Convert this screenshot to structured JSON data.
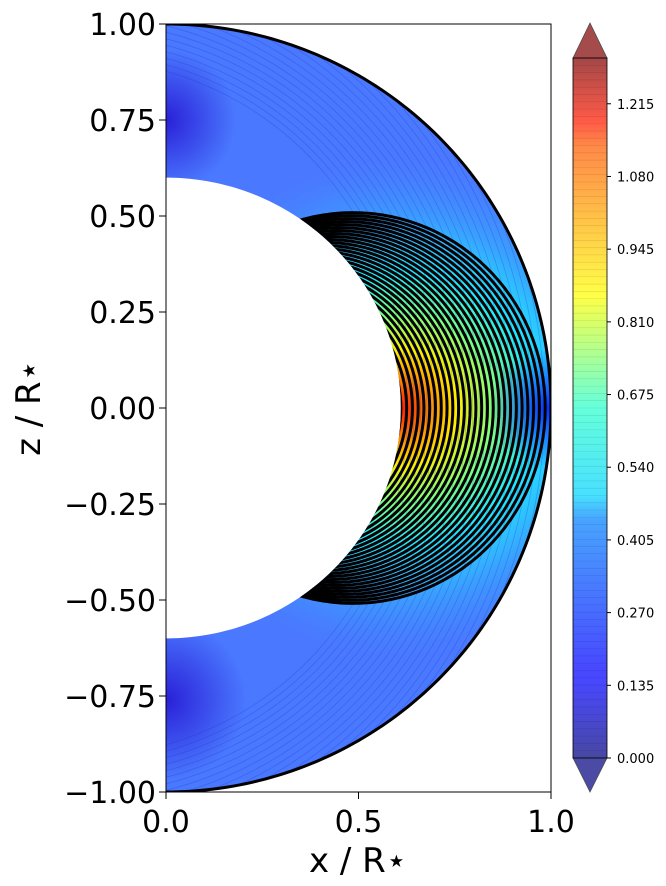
{
  "chart_data": {
    "type": "heatmap",
    "title": "",
    "xlabel": "x / R⋆",
    "ylabel": "z / R⋆",
    "xlim": [
      0.0,
      1.0
    ],
    "ylim": [
      -1.0,
      1.0
    ],
    "x_ticks": [
      "0.0",
      "0.5",
      "1.0"
    ],
    "y_ticks": [
      "1.00",
      "0.75",
      "0.50",
      "0.25",
      "0.00",
      "−0.25",
      "−0.50",
      "−0.75",
      "−1.00"
    ],
    "domain": {
      "shape": "half-annulus",
      "outer_radius": 1.0,
      "inner_boundary": "ellipse",
      "inner_semi_axis_x": 0.61,
      "inner_semi_axis_z": 0.6
    },
    "field_description": {
      "peak_value": 1.25,
      "peak_location": [
        0.61,
        0.0
      ],
      "high_near": "inner equator",
      "low_near": [
        "poles",
        "outer surface"
      ]
    },
    "colormap": "jet",
    "colorbar": {
      "min": 0.0,
      "max": 1.3,
      "ticks": [
        "0.000",
        "0.135",
        "0.270",
        "0.405",
        "0.540",
        "0.675",
        "0.810",
        "0.945",
        "1.080",
        "1.215"
      ],
      "extend": "both"
    },
    "field_lines": {
      "count": 30,
      "color": "#000000",
      "footpoints_x_at_z0": [
        0.61,
        0.625,
        0.64,
        0.655,
        0.67,
        0.685,
        0.7,
        0.715,
        0.73,
        0.745,
        0.76,
        0.775,
        0.79,
        0.805,
        0.82,
        0.835,
        0.85,
        0.865,
        0.88,
        0.895,
        0.91,
        0.925,
        0.94,
        0.955,
        0.97,
        0.985
      ]
    }
  }
}
